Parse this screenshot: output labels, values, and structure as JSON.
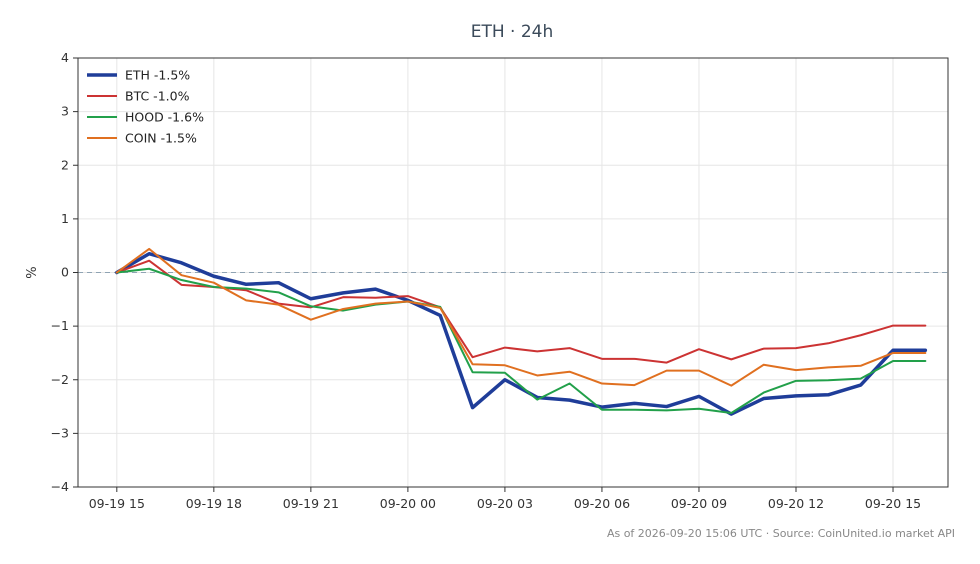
{
  "chart_data": {
    "type": "line",
    "title": "ETH · 24h",
    "ylabel": "%",
    "xlabel": "",
    "ylim": [
      -4,
      4
    ],
    "yticks": [
      -4,
      -3,
      -2,
      -1,
      0,
      1,
      2,
      3,
      4
    ],
    "ytick_labels": [
      "−4",
      "−3",
      "−2",
      "−1",
      "0",
      "1",
      "2",
      "3",
      "4"
    ],
    "x": [
      0,
      1,
      2,
      3,
      4,
      5,
      6,
      7,
      8,
      9,
      10,
      11,
      12,
      13,
      14,
      15,
      16,
      17,
      18,
      19,
      20,
      21,
      22,
      23,
      24,
      25
    ],
    "xlim": [
      -1.2,
      25.7
    ],
    "xticks": [
      0,
      3,
      6,
      9,
      12,
      15,
      18,
      21,
      24
    ],
    "xtick_labels": [
      "09-19 15",
      "09-19 18",
      "09-19 21",
      "09-20 00",
      "09-20 03",
      "09-20 06",
      "09-20 09",
      "09-20 12",
      "09-20 15"
    ],
    "grid": true,
    "zero_line": true,
    "legend_position": "top-left",
    "series": [
      {
        "name": "ETH -1.5%",
        "color": "#1f3d99",
        "width": 3.5,
        "values": [
          0,
          0.35,
          0.18,
          -0.07,
          -0.22,
          -0.19,
          -0.49,
          -0.38,
          -0.31,
          -0.52,
          -0.8,
          -2.52,
          -2.0,
          -2.33,
          -2.38,
          -2.51,
          -2.44,
          -2.5,
          -2.31,
          -2.64,
          -2.35,
          -2.3,
          -2.28,
          -2.1,
          -1.45,
          -1.45
        ]
      },
      {
        "name": "BTC -1.0%",
        "color": "#cc3333",
        "width": 2,
        "values": [
          0,
          0.22,
          -0.23,
          -0.27,
          -0.33,
          -0.58,
          -0.65,
          -0.46,
          -0.47,
          -0.44,
          -0.65,
          -1.58,
          -1.4,
          -1.47,
          -1.41,
          -1.61,
          -1.61,
          -1.68,
          -1.43,
          -1.62,
          -1.42,
          -1.41,
          -1.32,
          -1.17,
          -0.99,
          -0.99
        ]
      },
      {
        "name": "HOOD -1.6%",
        "color": "#22a04a",
        "width": 2,
        "values": [
          0,
          0.07,
          -0.14,
          -0.27,
          -0.3,
          -0.37,
          -0.63,
          -0.71,
          -0.6,
          -0.54,
          -0.64,
          -1.86,
          -1.87,
          -2.37,
          -2.07,
          -2.56,
          -2.56,
          -2.57,
          -2.54,
          -2.62,
          -2.24,
          -2.02,
          -2.01,
          -1.98,
          -1.65,
          -1.65
        ]
      },
      {
        "name": "COIN -1.5%",
        "color": "#e07020",
        "width": 2,
        "values": [
          0,
          0.44,
          -0.05,
          -0.19,
          -0.52,
          -0.6,
          -0.88,
          -0.68,
          -0.58,
          -0.54,
          -0.66,
          -1.71,
          -1.73,
          -1.92,
          -1.85,
          -2.07,
          -2.1,
          -1.83,
          -1.83,
          -2.11,
          -1.72,
          -1.82,
          -1.77,
          -1.74,
          -1.5,
          -1.5
        ]
      }
    ]
  },
  "footer": {
    "text": "As of 2026-09-20 15:06 UTC · Source: CoinUnited.io market API"
  }
}
